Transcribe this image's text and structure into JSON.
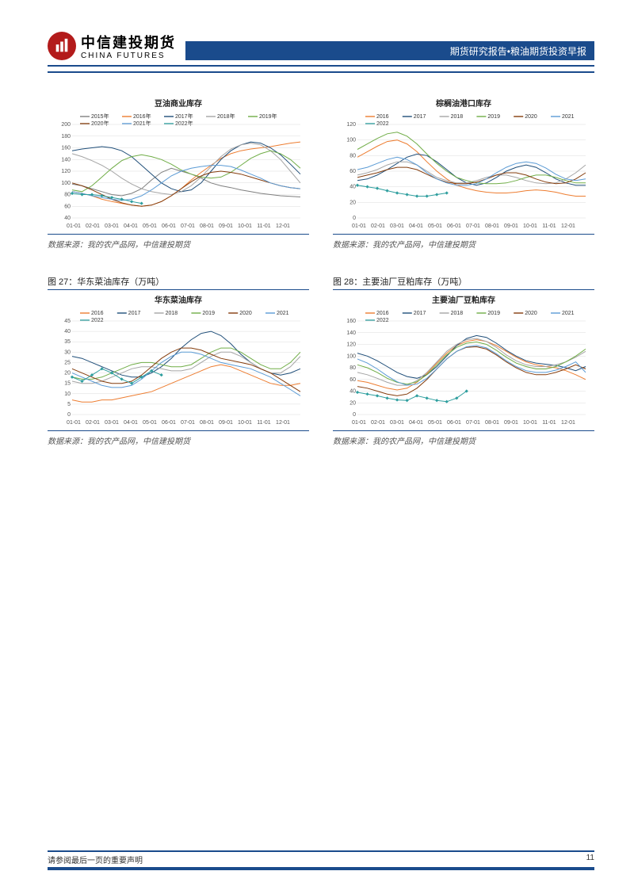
{
  "header": {
    "brand_cn": "中信建投期货",
    "brand_en": "CHINA FUTURES",
    "bar_text": "期货研究报告•粮油期货投资早报",
    "bar_bg": "#1a4b8c",
    "logo_bg": "#b31b1b"
  },
  "footer": {
    "disclaimer": "请参阅最后一页的重要声明",
    "page_num": "11",
    "rule_color": "#1a4b8c"
  },
  "x_labels": [
    "01-01",
    "02-01",
    "03-01",
    "04-01",
    "05-01",
    "06-01",
    "07-01",
    "08-01",
    "09-01",
    "10-01",
    "11-01",
    "12-01"
  ],
  "colors": {
    "2015": "#7f7f7f",
    "2016": "#ed7d31",
    "2017": "#1f4e79",
    "2018": "#a5a5a5",
    "2019": "#70ad47",
    "2020": "#843c0c",
    "2021": "#5b9bd5",
    "2022": "#2e9e9e",
    "grid": "#dddddd",
    "axis": "#888888",
    "bg": "#ffffff"
  },
  "charts": [
    {
      "key": "c1",
      "title": "豆油商业库存",
      "source": "数据来源：我的农产品网，中信建投期货",
      "ylim": [
        40,
        200
      ],
      "ytick": 20,
      "legend": [
        "2015年",
        "2016年",
        "2017年",
        "2018年",
        "2019年",
        "2020年",
        "2021年",
        "2022年"
      ],
      "legend_colors": [
        "#7f7f7f",
        "#ed7d31",
        "#1f4e79",
        "#a5a5a5",
        "#70ad47",
        "#843c0c",
        "#5b9bd5",
        "#2e9e9e"
      ],
      "series": [
        {
          "c": "#7f7f7f",
          "d": [
            98,
            95,
            90,
            85,
            80,
            78,
            82,
            90,
            105,
            118,
            125,
            120,
            115,
            108,
            100,
            95,
            92,
            88,
            85,
            82,
            80,
            78,
            77,
            76
          ]
        },
        {
          "c": "#ed7d31",
          "d": [
            85,
            82,
            78,
            72,
            68,
            65,
            62,
            60,
            62,
            68,
            78,
            90,
            105,
            118,
            130,
            142,
            150,
            155,
            158,
            160,
            162,
            165,
            168,
            170
          ]
        },
        {
          "c": "#1f4e79",
          "d": [
            155,
            158,
            160,
            162,
            160,
            155,
            145,
            130,
            115,
            100,
            90,
            85,
            88,
            100,
            120,
            140,
            155,
            165,
            170,
            168,
            160,
            148,
            132,
            115
          ]
        },
        {
          "c": "#a5a5a5",
          "d": [
            150,
            145,
            138,
            130,
            120,
            108,
            98,
            90,
            85,
            82,
            80,
            85,
            95,
            110,
            128,
            145,
            158,
            165,
            168,
            165,
            155,
            140,
            120,
            100
          ]
        },
        {
          "c": "#70ad47",
          "d": [
            88,
            85,
            95,
            110,
            125,
            138,
            145,
            148,
            145,
            140,
            132,
            122,
            115,
            110,
            108,
            110,
            118,
            130,
            142,
            150,
            155,
            150,
            140,
            125
          ]
        },
        {
          "c": "#843c0c",
          "d": [
            100,
            95,
            88,
            80,
            72,
            66,
            62,
            60,
            62,
            68,
            78,
            90,
            102,
            112,
            118,
            120,
            118,
            115,
            110,
            105,
            100,
            95,
            92,
            90
          ]
        },
        {
          "c": "#5b9bd5",
          "d": [
            85,
            82,
            78,
            75,
            72,
            70,
            72,
            78,
            88,
            100,
            112,
            120,
            125,
            128,
            130,
            130,
            128,
            122,
            115,
            108,
            100,
            95,
            92,
            90
          ]
        },
        {
          "c": "#2e9e9e",
          "d": [
            82,
            80,
            80,
            78,
            75,
            72,
            68,
            65
          ],
          "markers": true
        }
      ]
    },
    {
      "key": "c2",
      "title": "棕榈油港口库存",
      "source": "数据来源：我的农产品网，中信建投期货",
      "ylim": [
        0,
        120
      ],
      "ytick": 20,
      "legend": [
        "2016",
        "2017",
        "2018",
        "2019",
        "2020",
        "2021",
        "2022"
      ],
      "legend_colors": [
        "#ed7d31",
        "#1f4e79",
        "#a5a5a5",
        "#70ad47",
        "#843c0c",
        "#5b9bd5",
        "#2e9e9e"
      ],
      "series": [
        {
          "c": "#ed7d31",
          "d": [
            78,
            85,
            92,
            98,
            100,
            95,
            85,
            72,
            60,
            50,
            42,
            38,
            35,
            33,
            32,
            32,
            33,
            35,
            36,
            35,
            33,
            30,
            28,
            28
          ]
        },
        {
          "c": "#1f4e79",
          "d": [
            48,
            50,
            55,
            62,
            70,
            78,
            82,
            80,
            72,
            62,
            52,
            45,
            42,
            45,
            52,
            60,
            65,
            68,
            65,
            58,
            50,
            45,
            42,
            42
          ]
        },
        {
          "c": "#a5a5a5",
          "d": [
            55,
            58,
            62,
            68,
            72,
            72,
            68,
            60,
            52,
            48,
            45,
            45,
            48,
            52,
            55,
            55,
            52,
            48,
            45,
            44,
            45,
            50,
            58,
            68
          ]
        },
        {
          "c": "#70ad47",
          "d": [
            88,
            95,
            102,
            108,
            110,
            105,
            95,
            82,
            70,
            60,
            52,
            48,
            45,
            44,
            44,
            45,
            48,
            52,
            55,
            55,
            52,
            48,
            45,
            45
          ]
        },
        {
          "c": "#843c0c",
          "d": [
            52,
            55,
            58,
            62,
            65,
            65,
            62,
            56,
            50,
            46,
            44,
            44,
            46,
            50,
            55,
            58,
            58,
            55,
            50,
            46,
            44,
            45,
            50,
            58
          ]
        },
        {
          "c": "#5b9bd5",
          "d": [
            62,
            65,
            70,
            75,
            78,
            75,
            68,
            58,
            50,
            45,
            42,
            42,
            44,
            50,
            58,
            65,
            70,
            72,
            70,
            64,
            56,
            50,
            48,
            50
          ]
        },
        {
          "c": "#2e9e9e",
          "d": [
            42,
            40,
            38,
            35,
            32,
            30,
            28,
            28,
            30,
            32
          ],
          "markers": true
        }
      ]
    },
    {
      "key": "c3",
      "title": "华东菜油库存",
      "source": "数据来源：我的农产品网，中信建投期货",
      "caption": "图 27：华东菜油库存（万吨）",
      "ylim": [
        0,
        45
      ],
      "ytick": 5,
      "legend": [
        "2016",
        "2017",
        "2018",
        "2019",
        "2020",
        "2021",
        "2022"
      ],
      "legend_colors": [
        "#ed7d31",
        "#1f4e79",
        "#a5a5a5",
        "#70ad47",
        "#843c0c",
        "#5b9bd5",
        "#2e9e9e"
      ],
      "series": [
        {
          "c": "#ed7d31",
          "d": [
            7,
            6,
            6,
            7,
            7,
            8,
            9,
            10,
            11,
            13,
            15,
            17,
            19,
            21,
            23,
            24,
            23,
            21,
            19,
            17,
            15,
            14,
            14,
            15
          ]
        },
        {
          "c": "#1f4e79",
          "d": [
            28,
            27,
            25,
            23,
            21,
            19,
            18,
            18,
            20,
            23,
            27,
            32,
            36,
            39,
            40,
            38,
            34,
            29,
            25,
            22,
            20,
            19,
            20,
            22
          ]
        },
        {
          "c": "#a5a5a5",
          "d": [
            16,
            15,
            15,
            16,
            18,
            20,
            22,
            23,
            23,
            22,
            21,
            21,
            22,
            25,
            28,
            30,
            30,
            28,
            25,
            22,
            20,
            20,
            23,
            28
          ]
        },
        {
          "c": "#70ad47",
          "d": [
            18,
            17,
            17,
            18,
            20,
            22,
            24,
            25,
            25,
            24,
            23,
            23,
            24,
            27,
            30,
            32,
            32,
            30,
            27,
            24,
            22,
            22,
            25,
            30
          ]
        },
        {
          "c": "#843c0c",
          "d": [
            22,
            20,
            18,
            16,
            15,
            15,
            16,
            19,
            23,
            27,
            30,
            32,
            32,
            31,
            29,
            27,
            26,
            25,
            24,
            22,
            20,
            17,
            14,
            11
          ]
        },
        {
          "c": "#5b9bd5",
          "d": [
            20,
            18,
            16,
            14,
            13,
            13,
            14,
            17,
            21,
            25,
            28,
            30,
            30,
            29,
            27,
            25,
            24,
            23,
            22,
            20,
            18,
            15,
            12,
            9
          ]
        },
        {
          "c": "#2e9e9e",
          "d": [
            18,
            16,
            19,
            22,
            20,
            17,
            15,
            18,
            21,
            19
          ],
          "markers": true
        }
      ]
    },
    {
      "key": "c4",
      "title": "主要油厂豆粕库存",
      "source": "数据来源：我的农产品网，中信建投期货",
      "caption": "图 28：主要油厂豆粕库存（万吨）",
      "ylim": [
        0,
        160
      ],
      "ytick": 20,
      "legend": [
        "2016",
        "2017",
        "2018",
        "2019",
        "2020",
        "2021",
        "2022"
      ],
      "legend_colors": [
        "#ed7d31",
        "#1f4e79",
        "#a5a5a5",
        "#70ad47",
        "#843c0c",
        "#5b9bd5",
        "#2e9e9e"
      ],
      "series": [
        {
          "c": "#ed7d31",
          "d": [
            58,
            55,
            50,
            45,
            42,
            45,
            55,
            70,
            88,
            105,
            118,
            125,
            128,
            125,
            118,
            108,
            98,
            90,
            85,
            82,
            80,
            75,
            68,
            60
          ]
        },
        {
          "c": "#1f4e79",
          "d": [
            105,
            100,
            92,
            82,
            72,
            65,
            62,
            68,
            82,
            100,
            118,
            130,
            135,
            132,
            122,
            110,
            100,
            92,
            88,
            86,
            84,
            80,
            75,
            82
          ]
        },
        {
          "c": "#a5a5a5",
          "d": [
            72,
            68,
            62,
            55,
            50,
            50,
            58,
            72,
            90,
            108,
            120,
            128,
            130,
            125,
            115,
            102,
            92,
            85,
            82,
            82,
            85,
            90,
            98,
            108
          ]
        },
        {
          "c": "#70ad47",
          "d": [
            85,
            80,
            72,
            62,
            55,
            52,
            56,
            68,
            85,
            102,
            115,
            122,
            124,
            120,
            110,
            98,
            88,
            82,
            78,
            78,
            82,
            90,
            100,
            112
          ]
        },
        {
          "c": "#843c0c",
          "d": [
            48,
            45,
            40,
            35,
            32,
            35,
            45,
            60,
            78,
            95,
            108,
            115,
            116,
            112,
            102,
            90,
            80,
            72,
            68,
            68,
            72,
            78,
            85,
            78
          ]
        },
        {
          "c": "#5b9bd5",
          "d": [
            95,
            88,
            78,
            66,
            56,
            50,
            52,
            62,
            78,
            95,
            108,
            116,
            118,
            114,
            104,
            92,
            82,
            75,
            72,
            72,
            76,
            82,
            90,
            72
          ]
        },
        {
          "c": "#2e9e9e",
          "d": [
            38,
            35,
            32,
            28,
            25,
            24,
            32,
            28,
            24,
            22,
            28,
            40
          ],
          "markers": true
        }
      ]
    }
  ]
}
